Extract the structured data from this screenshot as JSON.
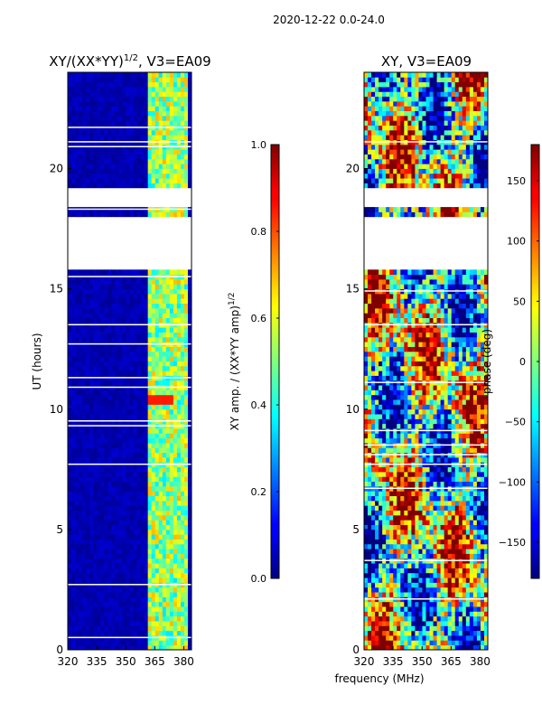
{
  "suptitle": "2020-12-22 0.0-24.0",
  "colors": {
    "deep_blue": "#00007f",
    "blue": "#0000ff",
    "cyan": "#00ffff",
    "yellow": "#ffff00",
    "red": "#ff0000",
    "dark_red": "#7f0000"
  },
  "chart_data": [
    {
      "type": "heatmap",
      "title": "XY/(XX*YY)",
      "title_sup": "1/2",
      "title_suffix": ", V3=EA09",
      "xlabel": "",
      "ylabel": "UT (hours)",
      "x_ticks": [
        "320",
        "335",
        "350",
        "365",
        "380"
      ],
      "x_tick_values": [
        320,
        335,
        350,
        365,
        380
      ],
      "y_ticks": [
        "0",
        "5",
        "10",
        "15",
        "20"
      ],
      "y_tick_values": [
        0,
        5,
        10,
        15,
        20
      ],
      "xlim": [
        320,
        384
      ],
      "ylim": [
        0,
        24
      ],
      "flagged_time_ranges": [
        [
          15.8,
          18.0
        ],
        [
          18.5,
          19.2
        ]
      ],
      "colorbar": {
        "label": "XY amp. / (XX*YY amp)",
        "label_sup": "1/2",
        "range": [
          0.0,
          1.0
        ],
        "ticks": [
          "0.0",
          "0.2",
          "0.4",
          "0.6",
          "0.8",
          "1.0"
        ],
        "tick_values": [
          0.0,
          0.2,
          0.4,
          0.6,
          0.8,
          1.0
        ]
      }
    },
    {
      "type": "heatmap",
      "title": "XY, V3=EA09",
      "xlabel": "frequency (MHz)",
      "ylabel": "",
      "x_ticks": [
        "320",
        "335",
        "350",
        "365",
        "380"
      ],
      "x_tick_values": [
        320,
        335,
        350,
        365,
        380
      ],
      "y_ticks": [
        "0",
        "5",
        "10",
        "15",
        "20"
      ],
      "y_tick_values": [
        0,
        5,
        10,
        15,
        20
      ],
      "xlim": [
        320,
        384
      ],
      "ylim": [
        0,
        24
      ],
      "flagged_time_ranges": [
        [
          15.8,
          18.0
        ],
        [
          18.5,
          19.2
        ]
      ],
      "colorbar": {
        "label": "phase (deg)",
        "range": [
          -180,
          180
        ],
        "ticks": [
          "−150",
          "−100",
          "−50",
          "0",
          "50",
          "100",
          "150"
        ],
        "tick_values": [
          -150,
          -100,
          -50,
          0,
          50,
          100,
          150
        ]
      }
    }
  ]
}
